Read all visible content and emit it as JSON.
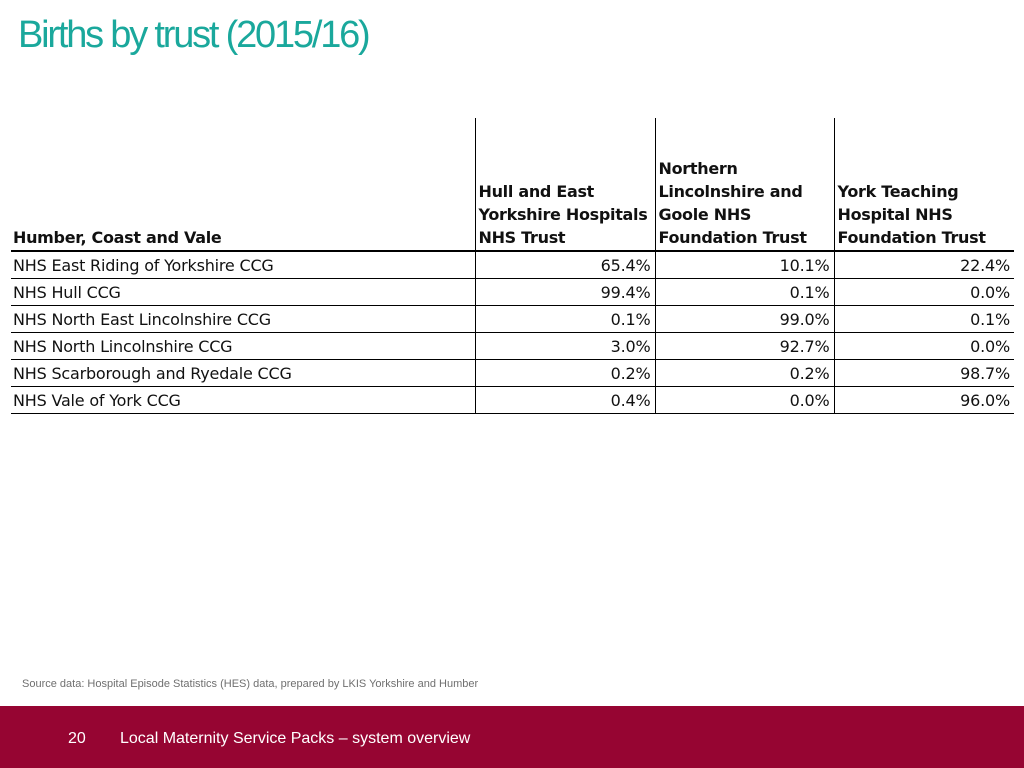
{
  "slide": {
    "title": "Births by trust (2015/16)",
    "source_note": "Source data: Hospital Episode Statistics (HES) data, prepared by LKIS Yorkshire and Humber",
    "page_number": "20",
    "footer_text": "Local Maternity Service Packs – system overview"
  },
  "table": {
    "headers": [
      {
        "lines": [
          "Humber, Coast and Vale"
        ]
      },
      {
        "lines": [
          "Hull and East",
          "Yorkshire Hospitals",
          "NHS Trust"
        ]
      },
      {
        "lines": [
          "Northern",
          "Lincolnshire and",
          "Goole NHS",
          "Foundation Trust"
        ]
      },
      {
        "lines": [
          "York Teaching",
          "Hospital NHS",
          "Foundation Trust"
        ]
      }
    ],
    "rows": [
      {
        "ccg": "NHS East Riding of Yorkshire CCG",
        "values": [
          "65.4%",
          "10.1%",
          "22.4%"
        ]
      },
      {
        "ccg": "NHS Hull CCG",
        "values": [
          "99.4%",
          "0.1%",
          "0.0%"
        ]
      },
      {
        "ccg": "NHS North East Lincolnshire CCG",
        "values": [
          "0.1%",
          "99.0%",
          "0.1%"
        ]
      },
      {
        "ccg": "NHS North Lincolnshire CCG",
        "values": [
          "3.0%",
          "92.7%",
          "0.0%"
        ]
      },
      {
        "ccg": "NHS Scarborough and Ryedale CCG",
        "values": [
          "0.2%",
          "0.2%",
          "98.7%"
        ]
      },
      {
        "ccg": "NHS Vale of York CCG",
        "values": [
          "0.4%",
          "0.0%",
          "96.0%"
        ]
      }
    ]
  },
  "colors": {
    "title": "#1aa89c",
    "footer_bar": "#960532",
    "footer_text": "#ffffff",
    "source_note": "#6f6f6f"
  }
}
